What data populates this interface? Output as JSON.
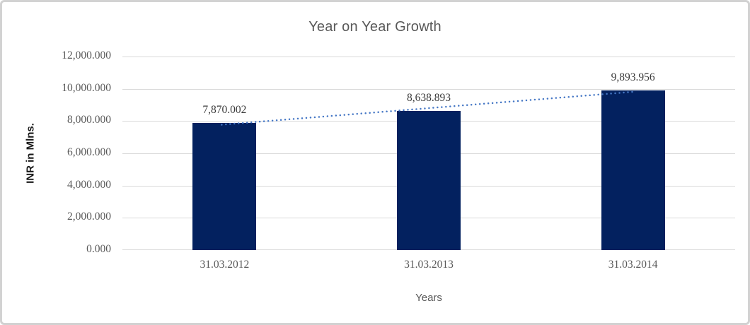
{
  "chart_data": {
    "type": "bar",
    "title": "Year on Year Growth",
    "xlabel": "Years",
    "ylabel": "INR in Mlns.",
    "categories": [
      "31.03.2012",
      "31.03.2013",
      "31.03.2014"
    ],
    "values": [
      7870.002,
      8638.893,
      9893.956
    ],
    "value_labels": [
      "7,870.002",
      "8,638.893",
      "9,893.956"
    ],
    "ylim": [
      0,
      12000
    ],
    "y_tick_step": 2000,
    "y_tick_labels": [
      "0.000",
      "2,000.000",
      "4,000.000",
      "6,000.000",
      "8,000.000",
      "10,000.000",
      "12,000.000"
    ],
    "grid": true,
    "legend": false,
    "trendline": "linear-dotted",
    "colors": {
      "bar": "#03215f",
      "trendline": "#4577c5",
      "gridline": "#d9d9d9"
    }
  }
}
